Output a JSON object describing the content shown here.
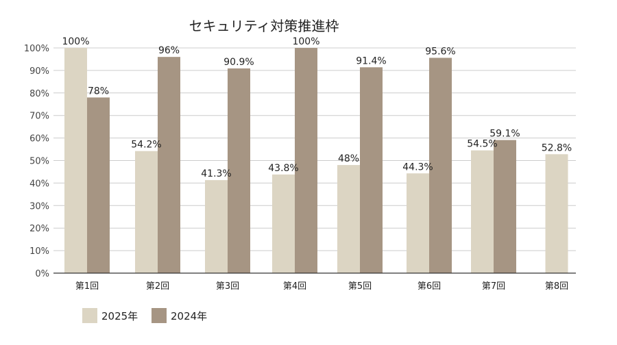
{
  "colors": {
    "series_2025": "#dcd5c3",
    "series_2024": "#a69583",
    "grid": "#cccccc",
    "axis": "#333333",
    "text": "#222222"
  },
  "chart_data": {
    "type": "bar",
    "title": "セキュリティ対策推進枠",
    "xlabel": "",
    "ylabel": "",
    "ylim": [
      0,
      100
    ],
    "y_ticks": [
      "0%",
      "10%",
      "20%",
      "30%",
      "40%",
      "50%",
      "60%",
      "70%",
      "80%",
      "90%",
      "100%"
    ],
    "grid": true,
    "legend_position": "bottom-left",
    "categories": [
      "第1回",
      "第2回",
      "第3回",
      "第4回",
      "第5回",
      "第6回",
      "第7回",
      "第8回"
    ],
    "series": [
      {
        "name": "2025年",
        "values": [
          100,
          54.2,
          41.3,
          43.8,
          48,
          44.3,
          54.5,
          52.8
        ],
        "labels": [
          "100%",
          "54.2%",
          "41.3%",
          "43.8%",
          "48%",
          "44.3%",
          "54.5%",
          "52.8%"
        ]
      },
      {
        "name": "2024年",
        "values": [
          78,
          96,
          90.9,
          100,
          91.4,
          95.6,
          59.1,
          null
        ],
        "labels": [
          "78%",
          "96%",
          "90.9%",
          "100%",
          "91.4%",
          "95.6%",
          "59.1%",
          ""
        ]
      }
    ]
  }
}
